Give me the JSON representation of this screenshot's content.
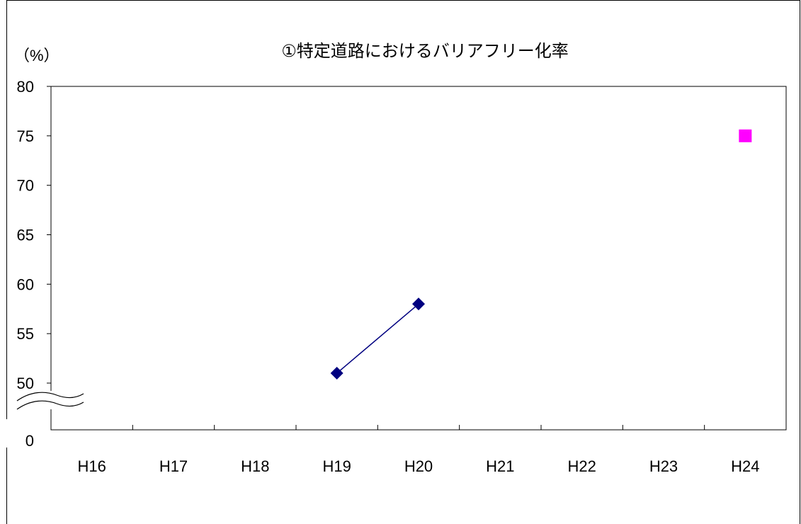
{
  "chart_data": {
    "type": "line",
    "title": "①特定道路におけるバリアフリー化率",
    "ylabel": "（%）",
    "categories": [
      "H16",
      "H17",
      "H18",
      "H19",
      "H20",
      "H21",
      "H22",
      "H23",
      "H24"
    ],
    "ylim": [
      50,
      80
    ],
    "yticks": [
      "80",
      "75",
      "70",
      "65",
      "60",
      "55",
      "50"
    ],
    "y_axis_break": true,
    "y_break_bottom_label": "0",
    "grid": false,
    "series": [
      {
        "marker": "diamond",
        "color": "#000080",
        "values": [
          null,
          null,
          null,
          51,
          58,
          null,
          null,
          null,
          null
        ]
      },
      {
        "marker": "square",
        "color": "#FF00FF",
        "values": [
          null,
          null,
          null,
          null,
          null,
          null,
          null,
          null,
          75
        ]
      }
    ]
  }
}
